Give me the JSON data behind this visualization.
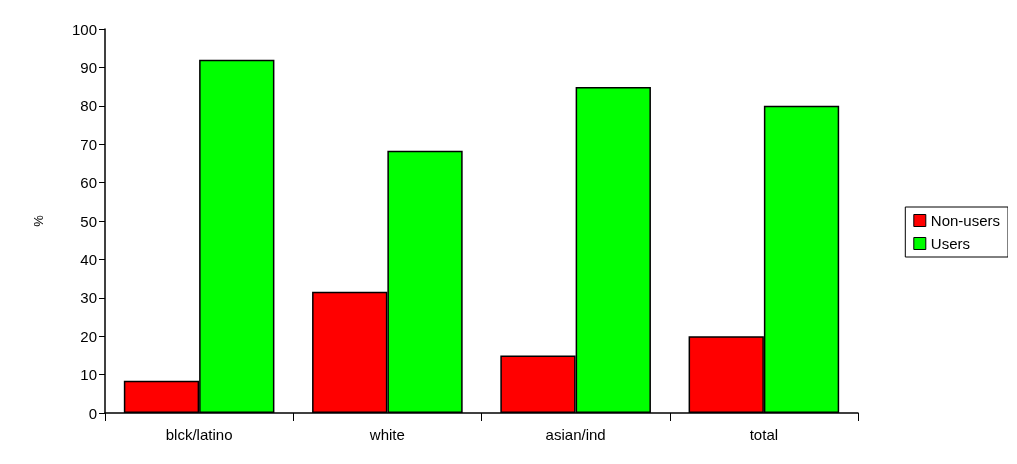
{
  "chart_data": {
    "type": "bar",
    "ylabel": "%",
    "categories": [
      "blck/latino",
      "white",
      "asian/ind",
      "total"
    ],
    "series": [
      {
        "name": "Non-users",
        "color": "#ff0000",
        "values": [
          8.4,
          31.6,
          15,
          20
        ]
      },
      {
        "name": "Users",
        "color": "#00ff00",
        "values": [
          92,
          68.3,
          84.9,
          80
        ]
      }
    ],
    "ylim": [
      0,
      100
    ],
    "yticks": [
      0,
      10,
      20,
      30,
      40,
      50,
      60,
      70,
      80,
      90,
      100
    ],
    "grid": false,
    "legend": "right"
  }
}
